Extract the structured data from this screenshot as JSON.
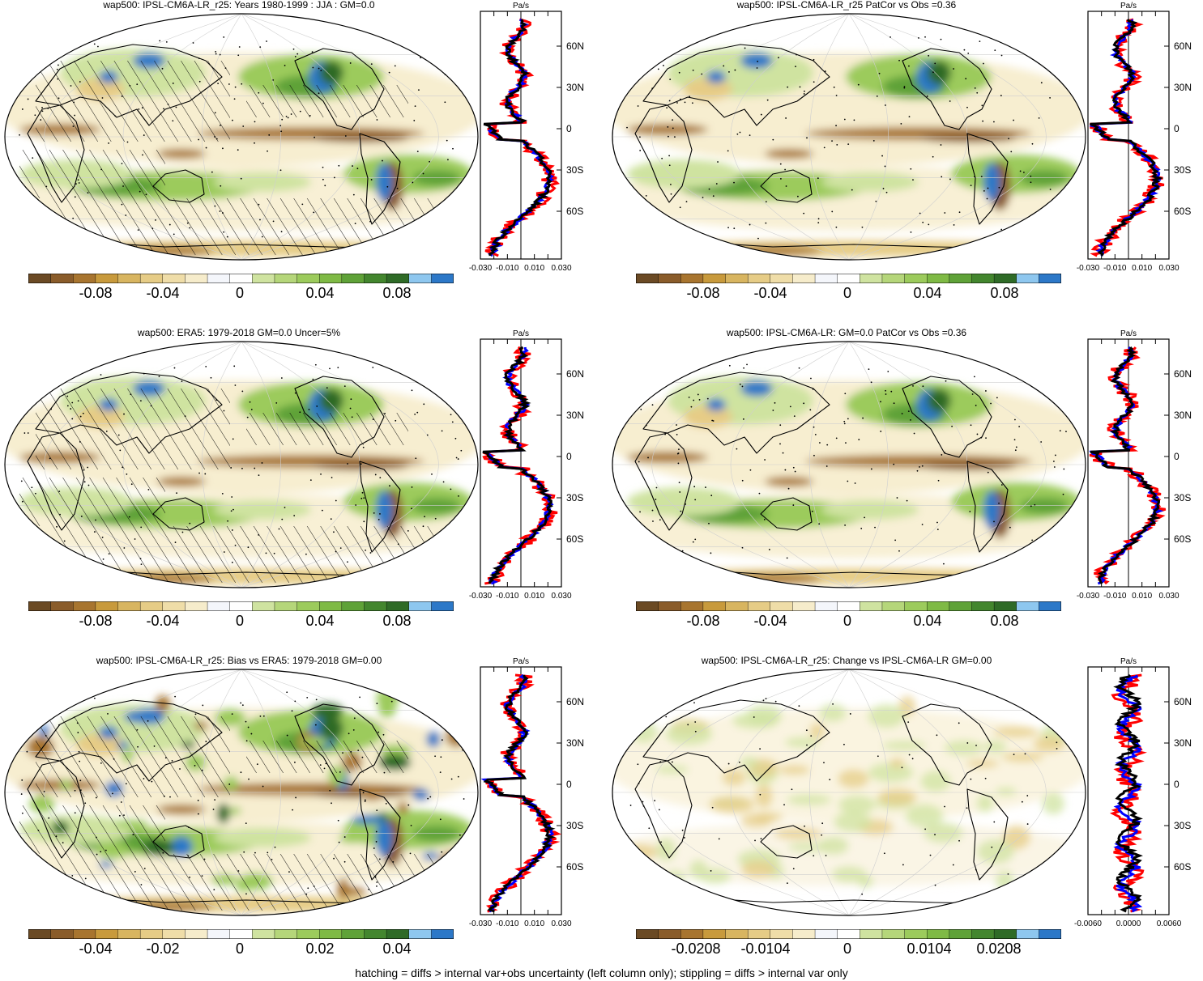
{
  "panels": [
    {
      "id": "p1",
      "title": "wap500: IPSL-CM6A-LR_r25: Years 1980-1999 : JJA : GM=0.0",
      "hatching": true,
      "profile": {
        "unit": "Pa/s",
        "lat_labels": [
          "60N",
          "30N",
          "0",
          "30S",
          "60S"
        ],
        "x_labels": [
          "-0.030",
          "-0.010",
          "0.010",
          "0.030"
        ]
      },
      "colorbar": {
        "labels": [
          "-0.08",
          "-0.04",
          "0",
          "0.04",
          "0.08"
        ]
      }
    },
    {
      "id": "p2",
      "title": "wap500: IPSL-CM6A-LR_r25 PatCor vs Obs =0.36",
      "hatching": false,
      "profile": {
        "unit": "Pa/s",
        "lat_labels": [
          "60N",
          "30N",
          "0",
          "30S",
          "60S"
        ],
        "x_labels": [
          "-0.030",
          "-0.010",
          "0.010",
          "0.030"
        ]
      },
      "colorbar": {
        "labels": [
          "-0.08",
          "-0.04",
          "0",
          "0.04",
          "0.08"
        ]
      }
    },
    {
      "id": "p3",
      "title": "wap500: ERA5: 1979-2018 GM=0.0 Uncer=5%",
      "hatching": true,
      "profile": {
        "unit": "Pa/s",
        "lat_labels": [
          "60N",
          "30N",
          "0",
          "30S",
          "60S"
        ],
        "x_labels": [
          "-0.030",
          "-0.010",
          "0.010",
          "0.030"
        ]
      },
      "colorbar": {
        "labels": [
          "-0.08",
          "-0.04",
          "0",
          "0.04",
          "0.08"
        ]
      }
    },
    {
      "id": "p4",
      "title": "wap500: IPSL-CM6A-LR: GM=0.0 PatCor vs Obs =0.36",
      "hatching": false,
      "profile": {
        "unit": "Pa/s",
        "lat_labels": [
          "60N",
          "30N",
          "0",
          "30S",
          "60S"
        ],
        "x_labels": [
          "-0.030",
          "-0.010",
          "0.010",
          "0.030"
        ]
      },
      "colorbar": {
        "labels": [
          "-0.08",
          "-0.04",
          "0",
          "0.04",
          "0.08"
        ]
      }
    },
    {
      "id": "p5",
      "title": "wap500: IPSL-CM6A-LR_r25: Bias vs ERA5: 1979-2018 GM=0.00",
      "hatching": true,
      "profile": {
        "unit": "Pa/s",
        "lat_labels": [
          "60N",
          "30N",
          "0",
          "30S",
          "60S"
        ],
        "x_labels": [
          "-0.030",
          "-0.010",
          "0.010",
          "0.030"
        ]
      },
      "colorbar": {
        "labels": [
          "-0.04",
          "-0.02",
          "0",
          "0.02",
          "0.04"
        ]
      }
    },
    {
      "id": "p6",
      "title": "wap500: IPSL-CM6A-LR_r25: Change vs IPSL-CM6A-LR GM=0.00",
      "hatching": false,
      "profile": {
        "unit": "Pa/s",
        "lat_labels": [
          "60N",
          "30N",
          "0",
          "30S",
          "60S"
        ],
        "x_labels": [
          "-0.0060",
          "0.0000",
          "0.0060"
        ]
      },
      "colorbar": {
        "labels": [
          "-0.0208",
          "-0.0104",
          "0",
          "0.0104",
          "0.0208"
        ]
      }
    }
  ],
  "palette": [
    "#6b4a24",
    "#8a5c2a",
    "#a8752f",
    "#c89a3c",
    "#d8b560",
    "#e6cc86",
    "#efdda8",
    "#f6eccb",
    "#f4f6fb",
    "#ffffff",
    "#cfe3a0",
    "#b5d67a",
    "#9ccb5c",
    "#7fba45",
    "#5fa238",
    "#43862e",
    "#2f6b27",
    "#8ec7ef",
    "#2c78c8"
  ],
  "line_colors": {
    "model": "#ff0000",
    "obs": "#0000ff",
    "mean": "#000000"
  },
  "footer": "hatching = diffs > internal var+obs uncertainty (left column only); stippling = diffs > internal var only"
}
